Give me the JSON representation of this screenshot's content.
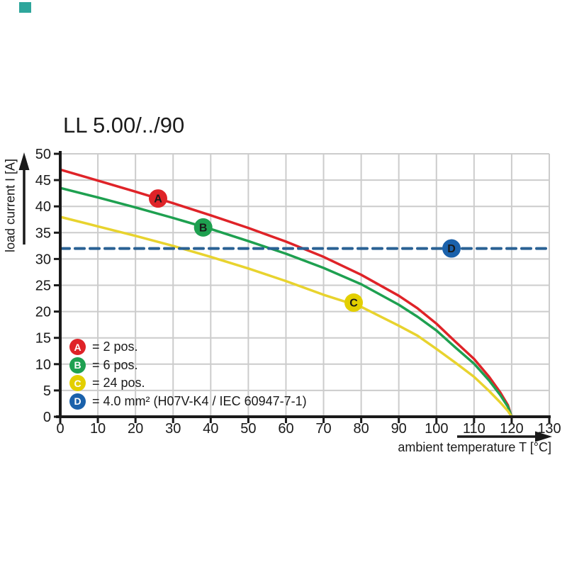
{
  "page": {
    "title": "LL 5.00/../90",
    "corner_swatch_color": "#2ea69b"
  },
  "colors": {
    "axis": "#1a1a1a",
    "grid": "#cccccc",
    "text": "#1a1a1a",
    "red": "#df2328",
    "green": "#1ea050",
    "yellow": "#e8d32e",
    "yellow_marker": "#e3cf00",
    "blue_dashed": "#2a6194",
    "blue_marker": "#1a61ab"
  },
  "chart_data": {
    "type": "line",
    "title": "LL 5.00/../90",
    "xlabel": "ambient temperature T [°C]",
    "ylabel": "load current I [A]",
    "xlim": [
      0,
      130
    ],
    "ylim": [
      0,
      50
    ],
    "x_ticks": [
      0,
      10,
      20,
      30,
      40,
      50,
      60,
      70,
      80,
      90,
      100,
      110,
      120,
      130
    ],
    "y_ticks": [
      0,
      5,
      10,
      15,
      20,
      25,
      30,
      35,
      40,
      45,
      50
    ],
    "grid": true,
    "legend_position": "lower-left-inside",
    "series": [
      {
        "id": "A",
        "name": "2 pos.",
        "color": "#df2328",
        "style": "solid",
        "points": [
          [
            0,
            47
          ],
          [
            10,
            44.9
          ],
          [
            20,
            42.8
          ],
          [
            30,
            40.6
          ],
          [
            40,
            38.3
          ],
          [
            50,
            35.9
          ],
          [
            60,
            33.3
          ],
          [
            70,
            30.4
          ],
          [
            80,
            27.0
          ],
          [
            90,
            23.0
          ],
          [
            95,
            20.6
          ],
          [
            100,
            17.7
          ],
          [
            105,
            14.3
          ],
          [
            110,
            11.0
          ],
          [
            114,
            7.6
          ],
          [
            117,
            4.6
          ],
          [
            119,
            2.2
          ],
          [
            120,
            0
          ]
        ]
      },
      {
        "id": "B",
        "name": "6 pos.",
        "color": "#1ea050",
        "style": "solid",
        "points": [
          [
            0,
            43.5
          ],
          [
            10,
            41.7
          ],
          [
            20,
            39.8
          ],
          [
            30,
            37.8
          ],
          [
            40,
            35.7
          ],
          [
            50,
            33.4
          ],
          [
            60,
            31.0
          ],
          [
            70,
            28.3
          ],
          [
            80,
            25.2
          ],
          [
            90,
            21.3
          ],
          [
            95,
            19.0
          ],
          [
            100,
            16.4
          ],
          [
            105,
            13.2
          ],
          [
            110,
            10.1
          ],
          [
            114,
            6.9
          ],
          [
            117,
            4.1
          ],
          [
            119,
            1.9
          ],
          [
            120,
            0
          ]
        ]
      },
      {
        "id": "C",
        "name": "24 pos.",
        "color": "#e8d32e",
        "style": "solid",
        "points": [
          [
            0,
            38
          ],
          [
            10,
            36.2
          ],
          [
            20,
            34.4
          ],
          [
            30,
            32.5
          ],
          [
            40,
            30.4
          ],
          [
            50,
            28.2
          ],
          [
            60,
            25.8
          ],
          [
            70,
            23.2
          ],
          [
            80,
            20.9
          ],
          [
            90,
            17.3
          ],
          [
            95,
            15.4
          ],
          [
            100,
            12.9
          ],
          [
            105,
            10.3
          ],
          [
            110,
            7.6
          ],
          [
            114,
            4.9
          ],
          [
            117,
            2.7
          ],
          [
            119,
            1.1
          ],
          [
            120,
            0
          ]
        ]
      },
      {
        "id": "D",
        "name": "4.0 mm² (H07V-K4 / IEC 60947-7-1)",
        "color": "#2a6194",
        "style": "dashed",
        "points": [
          [
            0,
            32
          ],
          [
            130,
            32
          ]
        ]
      }
    ],
    "curve_markers": [
      {
        "letter": "A",
        "x": 26,
        "y": 41.5,
        "color": "#df2328"
      },
      {
        "letter": "B",
        "x": 38,
        "y": 36.0,
        "color": "#1ea050"
      },
      {
        "letter": "C",
        "x": 78,
        "y": 21.7,
        "color": "#e3cf00"
      },
      {
        "letter": "D",
        "x": 104,
        "y": 32.0,
        "color": "#1a61ab"
      }
    ]
  },
  "legend": {
    "items": [
      {
        "letter": "A",
        "color": "#df2328",
        "label": "= 2 pos."
      },
      {
        "letter": "B",
        "color": "#1ea050",
        "label": "= 6 pos."
      },
      {
        "letter": "C",
        "color": "#e3cf00",
        "label": "= 24 pos."
      },
      {
        "letter": "D",
        "color": "#1a61ab",
        "label": "= 4.0 mm² (H07V-K4 / IEC 60947-7-1)"
      }
    ]
  }
}
